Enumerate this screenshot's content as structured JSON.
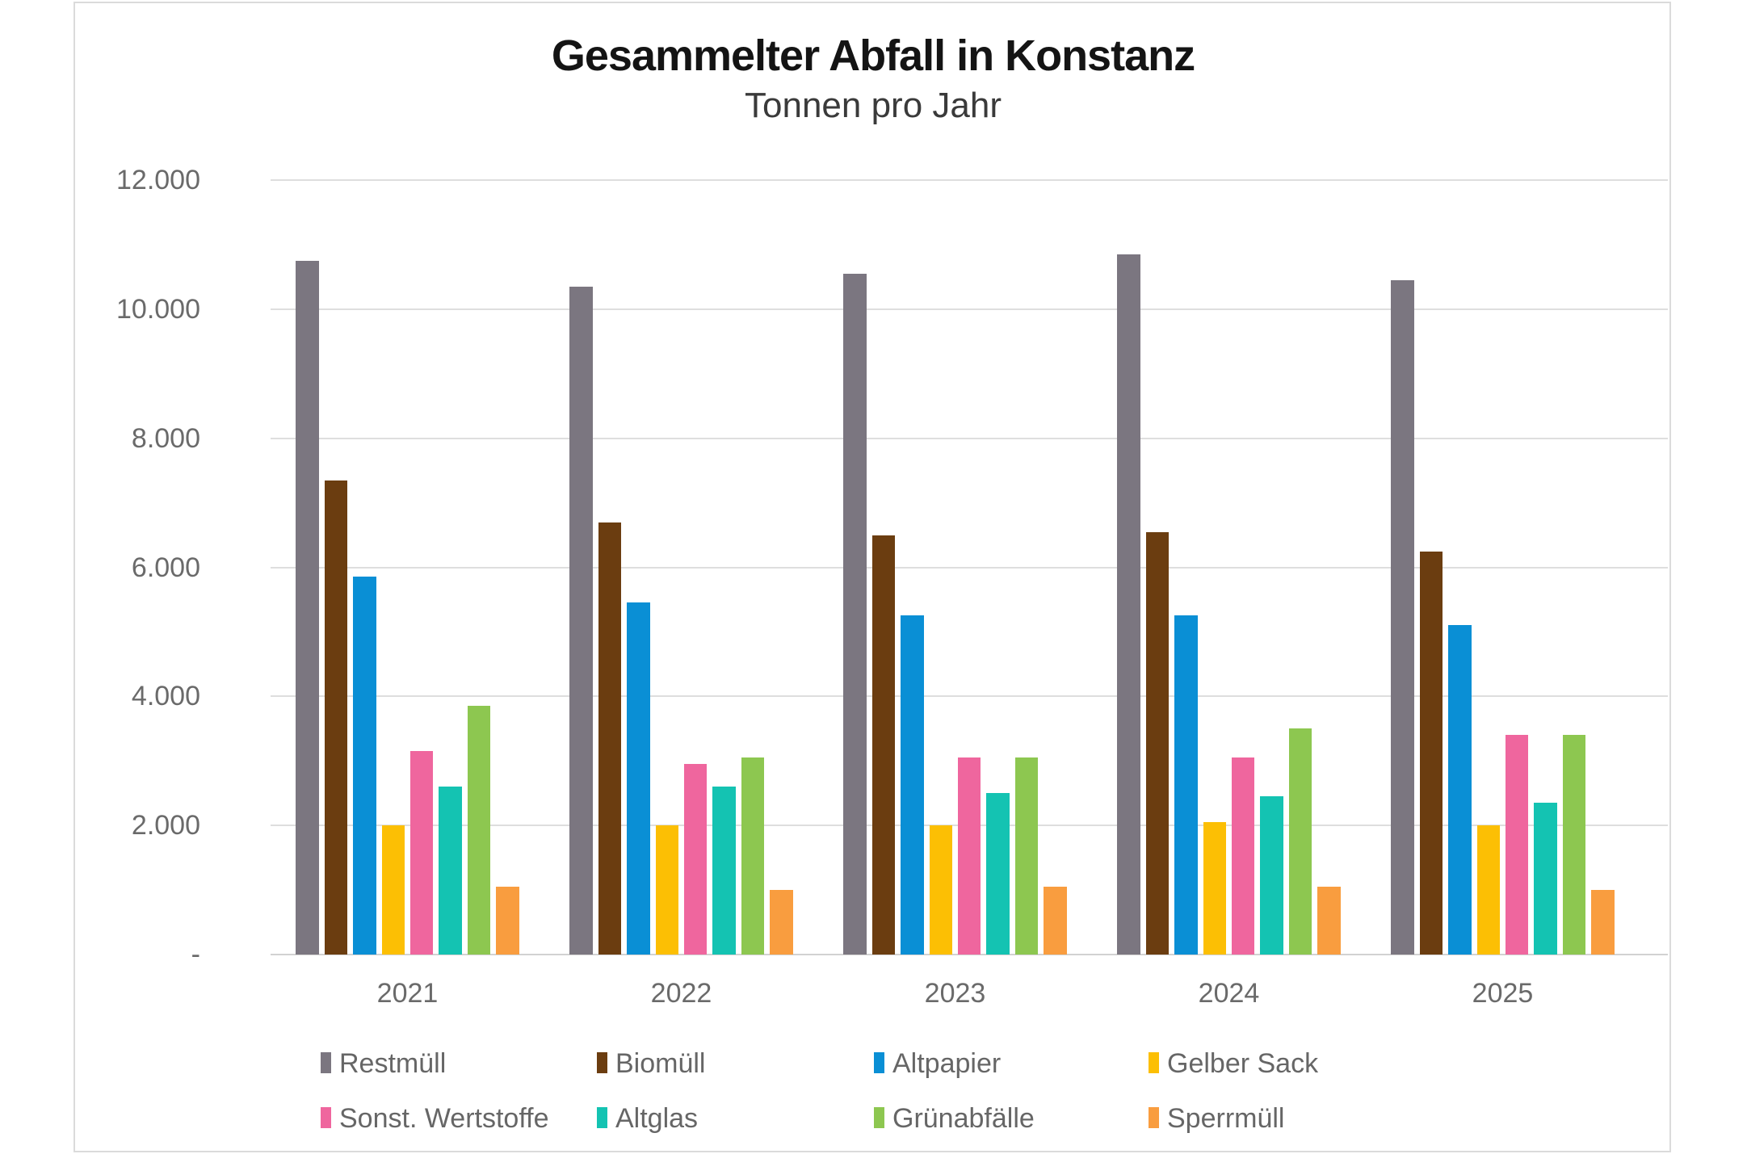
{
  "chart_data": {
    "type": "bar",
    "title": "Gesammelter Abfall in Konstanz",
    "subtitle": "Tonnen pro Jahr",
    "categories": [
      "2021",
      "2022",
      "2023",
      "2024",
      "2025"
    ],
    "series": [
      {
        "name": "Restmüll",
        "color": "#7b7680",
        "values": [
          10750,
          10350,
          10550,
          10850,
          10450
        ]
      },
      {
        "name": "Biomüll",
        "color": "#6b3d10",
        "values": [
          7350,
          6700,
          6500,
          6550,
          6250
        ]
      },
      {
        "name": "Altpapier",
        "color": "#0a8fd5",
        "values": [
          5850,
          5450,
          5250,
          5250,
          5100
        ]
      },
      {
        "name": "Gelber Sack",
        "color": "#fcbf04",
        "values": [
          2000,
          2000,
          2000,
          2050,
          2000
        ]
      },
      {
        "name": "Sonst. Wertstoffe",
        "color": "#ef669e",
        "values": [
          3150,
          2950,
          3050,
          3050,
          3400
        ]
      },
      {
        "name": "Altglas",
        "color": "#14c3b2",
        "values": [
          2600,
          2600,
          2500,
          2450,
          2350
        ]
      },
      {
        "name": "Grünabfälle",
        "color": "#8dc750",
        "values": [
          3850,
          3050,
          3050,
          3500,
          3400
        ]
      },
      {
        "name": "Sperrmüll",
        "color": "#f99d3f",
        "values": [
          1050,
          1000,
          1050,
          1050,
          1000
        ]
      }
    ],
    "y_axis": {
      "min": 0,
      "max": 12000,
      "step": 2000,
      "tick_labels_top_to_bottom": [
        "12.000",
        "10.000",
        "8.000",
        "6.000",
        "4.000",
        "2.000",
        "-"
      ]
    },
    "x_axis": {
      "tick_labels": [
        "2021",
        "2022",
        "2023",
        "2024",
        "2025"
      ]
    },
    "legend": {
      "position": "bottom",
      "rows": [
        [
          "Restmüll",
          "Biomüll",
          "Altpapier",
          "Gelber Sack"
        ],
        [
          "Sonst. Wertstoffe",
          "Altglas",
          "Grünabfälle",
          "Sperrmüll"
        ]
      ]
    },
    "grid": true
  }
}
